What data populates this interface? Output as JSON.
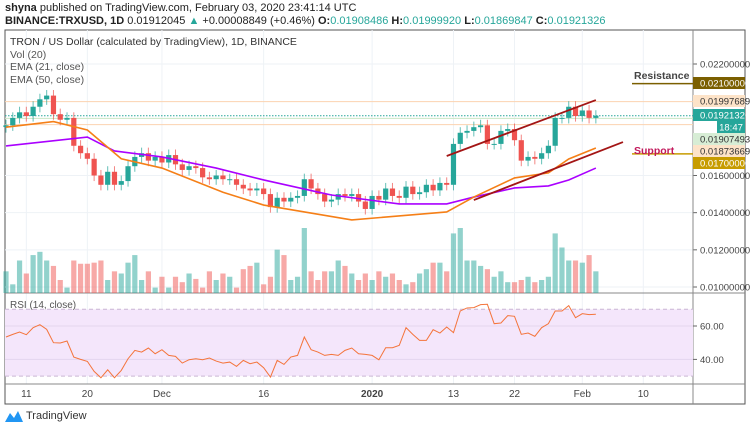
{
  "header": {
    "author": "shyna",
    "published_text": "published on TradingView.com, February 03, 2020 23:41:14 UTC",
    "symbol": "BINANCE:TRXUSD, 1D",
    "last": "0.01912045",
    "change": "+0.00008849 (+0.46%)",
    "open_label": "O:",
    "open": "0.01908486",
    "high_label": "H:",
    "high": "0.01999920",
    "low_label": "L:",
    "low": "0.01869847",
    "close_label": "C:",
    "close": "0.01921326"
  },
  "legend": {
    "title": "TRON / US Dollar (calculated by TradingView), 1D, BINANCE",
    "vol": "Vol (20)",
    "ema21": "EMA (21, close)",
    "ema50": "EMA (50, close)",
    "rsi": "RSI (14, close)"
  },
  "annotations": {
    "resistance": "Resistance",
    "support": "Support"
  },
  "branding": "TradingView",
  "colors": {
    "up": "#26a69a",
    "down": "#ef5350",
    "ema21": "#f57f17",
    "ema50": "#aa00ff",
    "trendline": "#a31515",
    "rsi": "#f4743b",
    "resistance": "#7b5f00",
    "support": "#c79c00",
    "support_text": "#c2185b"
  },
  "chart_data": {
    "type": "candlestick",
    "price_ticks": [
      "0.02200000",
      "0.01600000",
      "0.01400000",
      "0.01200000",
      "0.01000000"
    ],
    "price_tick_values": [
      0.022,
      0.016,
      0.014,
      0.012,
      0.01
    ],
    "ylim": [
      0.0099,
      0.0232
    ],
    "price_labels": [
      {
        "text": "0.02100000",
        "value": 0.021,
        "bg": "#7b5f00",
        "fg": "#ffffff"
      },
      {
        "text": "0.01997689",
        "value": 0.01997689,
        "bg": "#fde3c8",
        "fg": "#333333"
      },
      {
        "text": "0.01921326",
        "value": 0.01921326,
        "bg": "#26a69a",
        "fg": "#ffffff"
      },
      {
        "text": "0.01907493",
        "value": 0.01907493,
        "bg": "#d7edd5",
        "fg": "#333333"
      },
      {
        "text": "0.01873669",
        "value": 0.01873669,
        "bg": "#fde3c8",
        "fg": "#333333"
      },
      {
        "text": "0.01700000",
        "value": 0.017,
        "bg": "#c79c00",
        "fg": "#ffffff"
      }
    ],
    "countdown": "18:47",
    "hlines": [
      {
        "value": 0.01997689,
        "color": "#fbd3b0",
        "style": "solid"
      },
      {
        "value": 0.01921326,
        "color": "#26a69a",
        "style": "dotted"
      },
      {
        "value": 0.01907493,
        "color": "#c9e6c5",
        "style": "solid"
      },
      {
        "value": 0.01873669,
        "color": "#fbd3b0",
        "style": "solid"
      }
    ],
    "x_ticks": [
      {
        "label": "11",
        "date": "2019-11-11"
      },
      {
        "label": "20",
        "date": "2019-11-20"
      },
      {
        "label": "Dec",
        "date": "2019-12-01"
      },
      {
        "label": "16",
        "date": "2019-12-16"
      },
      {
        "label": "2020",
        "date": "2020-01-01",
        "bold": true
      },
      {
        "label": "13",
        "date": "2020-01-13"
      },
      {
        "label": "22",
        "date": "2020-01-22"
      },
      {
        "label": "Feb",
        "date": "2020-02-01"
      },
      {
        "label": "10",
        "date": "2020-02-10"
      }
    ],
    "candle_fields": [
      "date",
      "close",
      "volume_relative",
      "rsi"
    ],
    "candles": [
      [
        "2019-11-08",
        0.0187,
        20,
        53.4
      ],
      [
        "2019-11-09",
        0.0191,
        8,
        55
      ],
      [
        "2019-11-10",
        0.0194,
        30,
        56.4
      ],
      [
        "2019-11-11",
        0.0192,
        18,
        54.8
      ],
      [
        "2019-11-12",
        0.0197,
        35,
        59
      ],
      [
        "2019-11-13",
        0.0201,
        38,
        60.8
      ],
      [
        "2019-11-14",
        0.0203,
        30,
        58
      ],
      [
        "2019-11-15",
        0.0193,
        25,
        50
      ],
      [
        "2019-11-16",
        0.019,
        12,
        49.8
      ],
      [
        "2019-11-17",
        0.0191,
        5,
        51
      ],
      [
        "2019-11-18",
        0.0176,
        30,
        41.4
      ],
      [
        "2019-11-19",
        0.0172,
        27,
        40
      ],
      [
        "2019-11-20",
        0.0169,
        27,
        38.8
      ],
      [
        "2019-11-21",
        0.016,
        28,
        32.8
      ],
      [
        "2019-11-22",
        0.0155,
        30,
        29
      ],
      [
        "2019-11-23",
        0.0162,
        12,
        33.8
      ],
      [
        "2019-11-24",
        0.0155,
        20,
        29
      ],
      [
        "2019-11-25",
        0.0157,
        18,
        33.4
      ],
      [
        "2019-11-26",
        0.0165,
        28,
        40.4
      ],
      [
        "2019-11-27",
        0.017,
        35,
        45.4
      ],
      [
        "2019-11-28",
        0.0172,
        12,
        44.4
      ],
      [
        "2019-11-29",
        0.0168,
        20,
        46.8
      ],
      [
        "2019-11-30",
        0.017,
        5,
        43.4
      ],
      [
        "2019-12-01",
        0.0167,
        15,
        45.8
      ],
      [
        "2019-12-02",
        0.0171,
        5,
        42.4
      ],
      [
        "2019-12-03",
        0.0166,
        15,
        41.8
      ],
      [
        "2019-12-04",
        0.0163,
        10,
        37.8
      ],
      [
        "2019-12-05",
        0.0165,
        18,
        39.8
      ],
      [
        "2019-12-06",
        0.0164,
        13,
        40.4
      ],
      [
        "2019-12-07",
        0.0159,
        5,
        39.8
      ],
      [
        "2019-12-08",
        0.0158,
        20,
        40.8
      ],
      [
        "2019-12-09",
        0.016,
        12,
        39
      ],
      [
        "2019-12-10",
        0.0158,
        18,
        37.8
      ],
      [
        "2019-12-11",
        0.0158,
        15,
        38.4
      ],
      [
        "2019-12-12",
        0.0155,
        5,
        35.8
      ],
      [
        "2019-12-13",
        0.0153,
        22,
        39.4
      ],
      [
        "2019-12-14",
        0.0152,
        25,
        37.4
      ],
      [
        "2019-12-15",
        0.0153,
        28,
        38.4
      ],
      [
        "2019-12-16",
        0.015,
        8,
        35
      ],
      [
        "2019-12-17",
        0.0143,
        15,
        29.4
      ],
      [
        "2019-12-18",
        0.0148,
        40,
        39.4
      ],
      [
        "2019-12-19",
        0.0146,
        35,
        37
      ],
      [
        "2019-12-20",
        0.0148,
        12,
        41.4
      ],
      [
        "2019-12-21",
        0.0149,
        15,
        42.4
      ],
      [
        "2019-12-22",
        0.0158,
        60,
        53.4
      ],
      [
        "2019-12-23",
        0.0153,
        20,
        45.8
      ],
      [
        "2019-12-24",
        0.015,
        12,
        44.4
      ],
      [
        "2019-12-25",
        0.0146,
        20,
        42.4
      ],
      [
        "2019-12-26",
        0.0147,
        20,
        43
      ],
      [
        "2019-12-27",
        0.015,
        30,
        42.4
      ],
      [
        "2019-12-28",
        0.0149,
        25,
        45.4
      ],
      [
        "2019-12-29",
        0.015,
        18,
        46.8
      ],
      [
        "2019-12-30",
        0.0146,
        12,
        43.4
      ],
      [
        "2019-12-31",
        0.0142,
        18,
        43
      ],
      [
        "2020-01-01",
        0.0149,
        12,
        42.4
      ],
      [
        "2020-01-02",
        0.0147,
        20,
        39.8
      ],
      [
        "2020-01-03",
        0.0153,
        15,
        47
      ],
      [
        "2020-01-04",
        0.0149,
        18,
        47
      ],
      [
        "2020-01-05",
        0.0148,
        12,
        48.4
      ],
      [
        "2020-01-06",
        0.0154,
        8,
        59
      ],
      [
        "2020-01-07",
        0.015,
        10,
        55
      ],
      [
        "2020-01-08",
        0.0151,
        18,
        51.4
      ],
      [
        "2020-01-09",
        0.0155,
        22,
        51.4
      ],
      [
        "2020-01-10",
        0.0152,
        28,
        57.8
      ],
      [
        "2020-01-11",
        0.0156,
        28,
        55.8
      ],
      [
        "2020-01-12",
        0.0155,
        20,
        59.4
      ],
      [
        "2020-01-13",
        0.0177,
        55,
        56
      ],
      [
        "2020-01-14",
        0.0183,
        60,
        69
      ],
      [
        "2020-01-15",
        0.0184,
        30,
        70.8
      ],
      [
        "2020-01-16",
        0.0186,
        30,
        71
      ],
      [
        "2020-01-17",
        0.0187,
        25,
        72.8
      ],
      [
        "2020-01-18",
        0.0177,
        22,
        73
      ],
      [
        "2020-01-19",
        0.0177,
        15,
        61.4
      ],
      [
        "2020-01-20",
        0.0184,
        20,
        61.8
      ],
      [
        "2020-01-21",
        0.0185,
        10,
        66.2
      ],
      [
        "2020-01-22",
        0.0179,
        10,
        65.8
      ],
      [
        "2020-01-23",
        0.0168,
        12,
        55
      ],
      [
        "2020-01-24",
        0.017,
        15,
        55.8
      ],
      [
        "2020-01-25",
        0.0169,
        10,
        53.8
      ],
      [
        "2020-01-26",
        0.0172,
        12,
        59
      ],
      [
        "2020-01-27",
        0.0176,
        15,
        61.4
      ],
      [
        "2020-01-28",
        0.0191,
        55,
        69
      ],
      [
        "2020-01-29",
        0.0191,
        42,
        69
      ],
      [
        "2020-01-30",
        0.0197,
        30,
        72.2
      ],
      [
        "2020-01-31",
        0.0192,
        30,
        65
      ],
      [
        "2020-02-01",
        0.0195,
        28,
        67.4
      ],
      [
        "2020-02-02",
        0.0191,
        35,
        66.8
      ],
      [
        "2020-02-03",
        0.01921326,
        20,
        67
      ]
    ],
    "ema21": [
      [
        "2019-11-08",
        0.0186
      ],
      [
        "2019-11-15",
        0.0189
      ],
      [
        "2019-11-20",
        0.01845
      ],
      [
        "2019-11-25",
        0.0169
      ],
      [
        "2019-12-01",
        0.0164
      ],
      [
        "2019-12-10",
        0.0151
      ],
      [
        "2019-12-16",
        0.01441
      ],
      [
        "2019-12-22",
        0.01404
      ],
      [
        "2019-12-29",
        0.01361
      ],
      [
        "2020-01-12",
        0.01404
      ],
      [
        "2020-01-16",
        0.01484
      ],
      [
        "2020-01-22",
        0.01587
      ],
      [
        "2020-01-27",
        0.01614
      ],
      [
        "2020-01-30",
        0.01689
      ],
      [
        "2020-02-03",
        0.01748
      ]
    ],
    "ema50": [
      [
        "2019-11-08",
        0.01759
      ],
      [
        "2019-11-20",
        0.01807
      ],
      [
        "2019-11-24",
        0.01732
      ],
      [
        "2019-12-01",
        0.017
      ],
      [
        "2019-12-09",
        0.0164
      ],
      [
        "2019-12-16",
        0.01576
      ],
      [
        "2019-12-24",
        0.01511
      ],
      [
        "2019-12-26",
        0.01495
      ],
      [
        "2020-01-05",
        0.01447
      ],
      [
        "2020-01-12",
        0.01447
      ],
      [
        "2020-01-16",
        0.01484
      ],
      [
        "2020-01-22",
        0.01533
      ],
      [
        "2020-01-27",
        0.01544
      ],
      [
        "2020-01-30",
        0.01576
      ],
      [
        "2020-02-03",
        0.0164
      ]
    ],
    "trendlines": [
      {
        "name": "upper-channel",
        "from": [
          "2020-01-12",
          0.01705
        ],
        "to": [
          "2020-02-03",
          0.02006
        ]
      },
      {
        "name": "lower-channel",
        "from": [
          "2020-01-16",
          0.01468
        ],
        "to": [
          "2020-02-07",
          0.0178
        ]
      }
    ],
    "rsi_ticks": [
      "60.00",
      "40.00"
    ],
    "rsi_tick_values": [
      60,
      40
    ],
    "rsi_bands": [
      70,
      30
    ]
  }
}
